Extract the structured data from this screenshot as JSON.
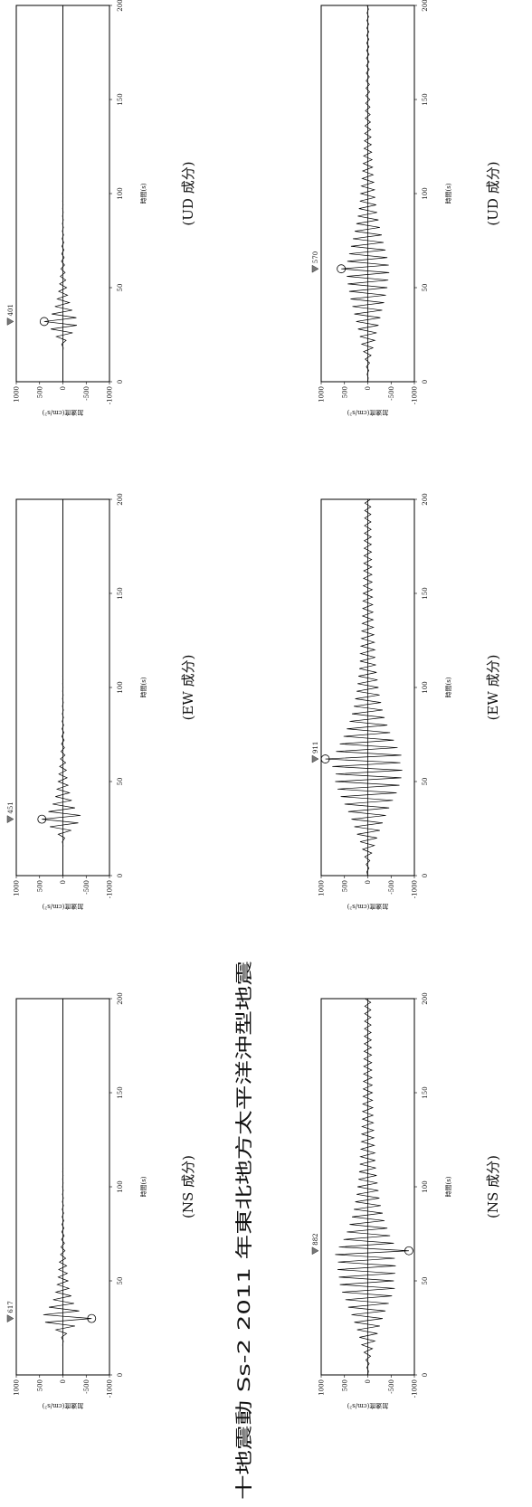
{
  "title": "十地震動 Ss-2 2011 年東北地方太平洋沖型地震",
  "chart_data": [
    {
      "type": "line",
      "caption": "(NS 成分)",
      "xlabel": "時間(s)",
      "ylabel": "加速度(cm/s²)",
      "color": "#000000",
      "max_abs": 617,
      "xlim": [
        0,
        200
      ],
      "xticks": [
        0,
        50,
        100,
        150,
        200
      ],
      "ylim": [
        -1000,
        1000
      ],
      "yticks": [
        -1000,
        -500,
        0,
        500,
        1000
      ],
      "x": [
        0,
        2,
        4,
        6,
        8,
        10,
        12,
        14,
        16,
        18,
        20,
        22,
        24,
        26,
        28,
        30,
        32,
        34,
        36,
        38,
        40,
        42,
        44,
        46,
        48,
        50,
        52,
        54,
        56,
        58,
        60,
        62,
        64,
        66,
        68,
        70,
        72,
        74,
        76,
        78,
        80,
        82,
        84,
        86,
        88,
        90,
        92,
        94,
        96,
        98,
        100,
        102,
        104,
        106,
        108,
        110,
        112,
        114,
        116,
        118,
        120,
        122,
        124,
        126,
        128,
        130,
        132,
        134,
        136,
        138,
        140,
        142,
        144,
        146,
        148,
        150,
        152,
        154,
        156,
        158,
        160,
        162,
        164,
        166,
        168,
        170,
        172,
        174,
        176,
        178,
        180,
        182,
        184,
        186,
        188,
        190,
        192,
        194,
        196,
        198,
        200
      ],
      "values": [
        0,
        0,
        0,
        0,
        0,
        0,
        0,
        0,
        5,
        -10,
        30,
        -80,
        150,
        -260,
        380,
        -617,
        420,
        -350,
        300,
        -240,
        210,
        -180,
        150,
        -130,
        120,
        -110,
        100,
        -95,
        90,
        -80,
        75,
        -60,
        50,
        -45,
        40,
        -35,
        30,
        -28,
        25,
        -22,
        20,
        -18,
        16,
        -15,
        14,
        -12,
        11,
        -10,
        9,
        -8,
        7,
        -6,
        6,
        -5,
        5,
        -4,
        4,
        -3,
        3,
        -2,
        2,
        0,
        0,
        0,
        0,
        0,
        0,
        0,
        0,
        0,
        0,
        0,
        0,
        0,
        0,
        0,
        0,
        0,
        0,
        0,
        0,
        0,
        0,
        0,
        0,
        0,
        0,
        0,
        0,
        0,
        0,
        0,
        0,
        0,
        0,
        0,
        0,
        0,
        0,
        0,
        0
      ]
    },
    {
      "type": "line",
      "caption": "(EW 成分)",
      "xlabel": "時間(s)",
      "ylabel": "加速度(cm/s²)",
      "color": "#000000",
      "max_abs": 451,
      "xlim": [
        0,
        200
      ],
      "xticks": [
        0,
        50,
        100,
        150,
        200
      ],
      "ylim": [
        -1000,
        1000
      ],
      "yticks": [
        -1000,
        -500,
        0,
        500,
        1000
      ],
      "x": [
        0,
        2,
        4,
        6,
        8,
        10,
        12,
        14,
        16,
        18,
        20,
        22,
        24,
        26,
        28,
        30,
        32,
        34,
        36,
        38,
        40,
        42,
        44,
        46,
        48,
        50,
        52,
        54,
        56,
        58,
        60,
        62,
        64,
        66,
        68,
        70,
        72,
        74,
        76,
        78,
        80,
        82,
        84,
        86,
        88,
        90,
        92,
        94,
        96,
        98,
        100,
        102,
        104,
        106,
        108,
        110,
        112,
        114,
        116,
        118,
        120,
        122,
        124,
        126,
        128,
        130,
        132,
        134,
        136,
        138,
        140,
        142,
        144,
        146,
        148,
        150,
        152,
        154,
        156,
        158,
        160,
        162,
        164,
        166,
        168,
        170,
        172,
        174,
        176,
        178,
        180,
        182,
        184,
        186,
        188,
        190,
        192,
        194,
        196,
        198,
        200
      ],
      "values": [
        0,
        0,
        0,
        0,
        0,
        0,
        0,
        0,
        -5,
        12,
        -40,
        100,
        -180,
        280,
        -330,
        451,
        -380,
        310,
        -260,
        220,
        -190,
        160,
        -140,
        125,
        -110,
        100,
        -90,
        85,
        -75,
        70,
        -60,
        52,
        -45,
        40,
        -35,
        30,
        -27,
        24,
        -21,
        18,
        -16,
        15,
        -13,
        12,
        -11,
        10,
        -9,
        8,
        -7,
        6,
        -5,
        5,
        -4,
        4,
        -3,
        3,
        -2,
        2,
        -2,
        1,
        -1,
        0,
        0,
        0,
        0,
        0,
        0,
        0,
        0,
        0,
        0,
        0,
        0,
        0,
        0,
        0,
        0,
        0,
        0,
        0,
        0,
        0,
        0,
        0,
        0,
        0,
        0,
        0,
        0,
        0,
        0,
        0,
        0,
        0,
        0,
        0,
        0,
        0,
        0,
        0,
        0
      ]
    },
    {
      "type": "line",
      "caption": "(UD 成分)",
      "xlabel": "時間(s)",
      "ylabel": "加速度(cm/s²)",
      "color": "#000000",
      "max_abs": 401,
      "xlim": [
        0,
        200
      ],
      "xticks": [
        0,
        50,
        100,
        150,
        200
      ],
      "ylim": [
        -1000,
        1000
      ],
      "yticks": [
        -1000,
        -500,
        0,
        500,
        1000
      ],
      "x": [
        0,
        2,
        4,
        6,
        8,
        10,
        12,
        14,
        16,
        18,
        20,
        22,
        24,
        26,
        28,
        30,
        32,
        34,
        36,
        38,
        40,
        42,
        44,
        46,
        48,
        50,
        52,
        54,
        56,
        58,
        60,
        62,
        64,
        66,
        68,
        70,
        72,
        74,
        76,
        78,
        80,
        82,
        84,
        86,
        88,
        90,
        92,
        94,
        96,
        98,
        100,
        102,
        104,
        106,
        108,
        110,
        112,
        114,
        116,
        118,
        120,
        122,
        124,
        126,
        128,
        130,
        132,
        134,
        136,
        138,
        140,
        142,
        144,
        146,
        148,
        150,
        152,
        154,
        156,
        158,
        160,
        162,
        164,
        166,
        168,
        170,
        172,
        174,
        176,
        178,
        180,
        182,
        184,
        186,
        188,
        190,
        192,
        194,
        196,
        198,
        200
      ],
      "values": [
        0,
        0,
        0,
        0,
        0,
        0,
        0,
        0,
        0,
        -8,
        25,
        -70,
        140,
        -210,
        260,
        -300,
        401,
        -290,
        240,
        -200,
        170,
        -140,
        120,
        -100,
        90,
        -80,
        70,
        -62,
        55,
        -48,
        42,
        -36,
        32,
        -28,
        25,
        -22,
        20,
        -18,
        16,
        -14,
        12,
        -11,
        10,
        -9,
        8,
        -7,
        6,
        -5,
        5,
        -4,
        4,
        -3,
        3,
        -2,
        2,
        -2,
        1,
        -1,
        1,
        -1,
        0,
        0,
        0,
        0,
        0,
        0,
        0,
        0,
        0,
        0,
        0,
        0,
        0,
        0,
        0,
        0,
        0,
        0,
        0,
        0,
        0,
        0,
        0,
        0,
        0,
        0,
        0,
        0,
        0,
        0,
        0,
        0,
        0,
        0,
        0,
        0,
        0,
        0,
        0,
        0,
        0
      ]
    },
    {
      "type": "line",
      "caption": "(NS 成分)",
      "xlabel": "時間(s)",
      "ylabel": "加速度(cm/s²)",
      "color": "#000000",
      "max_abs": 882,
      "xlim": [
        0,
        200
      ],
      "xticks": [
        0,
        50,
        100,
        150,
        200
      ],
      "ylim": [
        -1000,
        1000
      ],
      "yticks": [
        -1000,
        -500,
        0,
        500,
        1000
      ],
      "x": [
        0,
        2,
        4,
        6,
        8,
        10,
        12,
        14,
        16,
        18,
        20,
        22,
        24,
        26,
        28,
        30,
        32,
        34,
        36,
        38,
        40,
        42,
        44,
        46,
        48,
        50,
        52,
        54,
        56,
        58,
        60,
        62,
        64,
        66,
        68,
        70,
        72,
        74,
        76,
        78,
        80,
        82,
        84,
        86,
        88,
        90,
        92,
        94,
        96,
        98,
        100,
        102,
        104,
        106,
        108,
        110,
        112,
        114,
        116,
        118,
        120,
        122,
        124,
        126,
        128,
        130,
        132,
        134,
        136,
        138,
        140,
        142,
        144,
        146,
        148,
        150,
        152,
        154,
        156,
        158,
        160,
        162,
        164,
        166,
        168,
        170,
        172,
        174,
        176,
        178,
        180,
        182,
        184,
        186,
        188,
        190,
        192,
        194,
        196,
        198,
        200
      ],
      "values": [
        0,
        -15,
        20,
        -30,
        40,
        -60,
        80,
        -100,
        130,
        -150,
        180,
        -210,
        230,
        -260,
        290,
        -320,
        350,
        -380,
        420,
        -450,
        480,
        -520,
        550,
        -580,
        600,
        -560,
        620,
        -590,
        650,
        -600,
        640,
        -580,
        700,
        -882,
        620,
        -560,
        520,
        -480,
        450,
        -420,
        390,
        -360,
        340,
        -320,
        300,
        -280,
        270,
        -250,
        240,
        -230,
        220,
        -210,
        200,
        -190,
        185,
        -175,
        170,
        -160,
        155,
        -150,
        145,
        -140,
        135,
        -130,
        128,
        -125,
        122,
        -118,
        115,
        -112,
        110,
        -108,
        105,
        -102,
        100,
        -98,
        96,
        -94,
        92,
        -90,
        88,
        -86,
        85,
        -84,
        82,
        -80,
        79,
        -78,
        76,
        -75,
        74,
        -72,
        71,
        -70,
        68,
        -67,
        66,
        -65,
        64,
        -63,
        62
      ]
    },
    {
      "type": "line",
      "caption": "(EW 成分)",
      "xlabel": "時間(s)",
      "ylabel": "加速度(cm/s²)",
      "color": "#000000",
      "max_abs": 911,
      "xlim": [
        0,
        200
      ],
      "xticks": [
        0,
        50,
        100,
        150,
        200
      ],
      "ylim": [
        -1000,
        1000
      ],
      "yticks": [
        -1000,
        -500,
        0,
        500,
        1000
      ],
      "x": [
        0,
        2,
        4,
        6,
        8,
        10,
        12,
        14,
        16,
        18,
        20,
        22,
        24,
        26,
        28,
        30,
        32,
        34,
        36,
        38,
        40,
        42,
        44,
        46,
        48,
        50,
        52,
        54,
        56,
        58,
        60,
        62,
        64,
        66,
        68,
        70,
        72,
        74,
        76,
        78,
        80,
        82,
        84,
        86,
        88,
        90,
        92,
        94,
        96,
        98,
        100,
        102,
        104,
        106,
        108,
        110,
        112,
        114,
        116,
        118,
        120,
        122,
        124,
        126,
        128,
        130,
        132,
        134,
        136,
        138,
        140,
        142,
        144,
        146,
        148,
        150,
        152,
        154,
        156,
        158,
        160,
        162,
        164,
        166,
        168,
        170,
        172,
        174,
        176,
        178,
        180,
        182,
        184,
        186,
        188,
        190,
        192,
        194,
        196,
        198,
        200
      ],
      "values": [
        0,
        20,
        -25,
        35,
        -45,
        65,
        -85,
        110,
        -140,
        165,
        -200,
        230,
        -260,
        290,
        -320,
        350,
        -390,
        420,
        -460,
        500,
        -540,
        580,
        -620,
        650,
        -680,
        700,
        -720,
        690,
        -740,
        760,
        -700,
        911,
        -720,
        680,
        -640,
        600,
        -560,
        520,
        -480,
        450,
        -420,
        390,
        -360,
        340,
        -320,
        300,
        -285,
        270,
        -255,
        240,
        -230,
        220,
        -210,
        200,
        -190,
        182,
        -175,
        168,
        -160,
        155,
        -150,
        145,
        -140,
        135,
        -130,
        126,
        -122,
        118,
        -115,
        112,
        -110,
        107,
        -104,
        102,
        -100,
        98,
        -96,
        94,
        -92,
        90,
        -88,
        86,
        -85,
        84,
        -82,
        80,
        -79,
        78,
        -76,
        75,
        -74,
        72,
        -71,
        70,
        -68,
        67,
        -66,
        65,
        -64,
        63,
        -62
      ]
    },
    {
      "type": "line",
      "caption": "(UD 成分)",
      "xlabel": "時間(s)",
      "ylabel": "加速度(cm/s²)",
      "color": "#000000",
      "max_abs": 570,
      "xlim": [
        0,
        200
      ],
      "xticks": [
        0,
        50,
        100,
        150,
        200
      ],
      "ylim": [
        -1000,
        1000
      ],
      "yticks": [
        -1000,
        -500,
        0,
        500,
        1000
      ],
      "x": [
        0,
        2,
        4,
        6,
        8,
        10,
        12,
        14,
        16,
        18,
        20,
        22,
        24,
        26,
        28,
        30,
        32,
        34,
        36,
        38,
        40,
        42,
        44,
        46,
        48,
        50,
        52,
        54,
        56,
        58,
        60,
        62,
        64,
        66,
        68,
        70,
        72,
        74,
        76,
        78,
        80,
        82,
        84,
        86,
        88,
        90,
        92,
        94,
        96,
        98,
        100,
        102,
        104,
        106,
        108,
        110,
        112,
        114,
        116,
        118,
        120,
        122,
        124,
        126,
        128,
        130,
        132,
        134,
        136,
        138,
        140,
        142,
        144,
        146,
        148,
        150,
        152,
        154,
        156,
        158,
        160,
        162,
        164,
        166,
        168,
        170,
        172,
        174,
        176,
        178,
        180,
        182,
        184,
        186,
        188,
        190,
        192,
        194,
        196,
        198,
        200
      ],
      "values": [
        0,
        -10,
        15,
        -20,
        30,
        -40,
        55,
        -70,
        90,
        -110,
        130,
        -150,
        170,
        -190,
        210,
        -230,
        250,
        -270,
        290,
        -310,
        330,
        -350,
        370,
        -390,
        400,
        -420,
        430,
        -440,
        450,
        -460,
        570,
        -450,
        440,
        -420,
        400,
        -380,
        360,
        -340,
        320,
        -300,
        280,
        -260,
        245,
        -230,
        215,
        -200,
        190,
        -180,
        170,
        -160,
        150,
        -142,
        135,
        -128,
        120,
        -114,
        108,
        -102,
        97,
        -92,
        88,
        -84,
        80,
        -76,
        72,
        -69,
        66,
        -63,
        60,
        -57,
        55,
        -52,
        50,
        -48,
        46,
        -44,
        42,
        -40,
        38,
        -36,
        35,
        -34,
        32,
        -31,
        30,
        -29,
        28,
        -27,
        26,
        -25,
        24,
        -23,
        22,
        -21,
        20,
        -19,
        18,
        -17,
        16,
        -15,
        14
      ]
    }
  ]
}
